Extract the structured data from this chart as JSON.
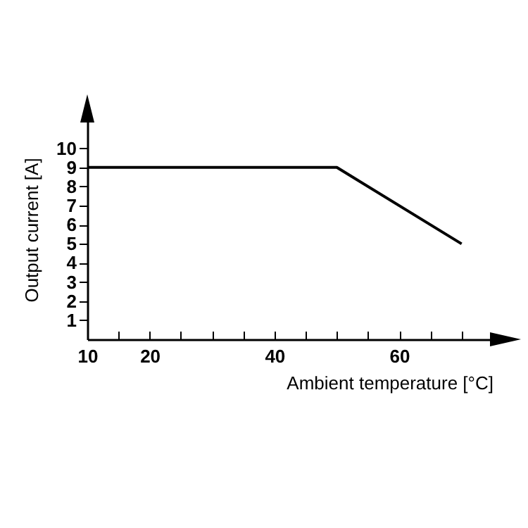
{
  "chart_data": {
    "type": "line",
    "xlabel": "Ambient temperature [°C]",
    "ylabel": "Output current [A]",
    "x": [
      10,
      50,
      70
    ],
    "series": [
      {
        "color": "#000000",
        "values": [
          9,
          9,
          5
        ]
      }
    ],
    "xlim": [
      10,
      75
    ],
    "ylim": [
      0,
      11.5
    ],
    "xticks": [
      10,
      {
        "value": 15,
        "label": null
      },
      20,
      {
        "value": 25,
        "label": null
      },
      {
        "value": 30,
        "label": null
      },
      {
        "value": 35,
        "label": null
      },
      40,
      {
        "value": 45,
        "label": null
      },
      {
        "value": 50,
        "label": null
      },
      {
        "value": 55,
        "label": null
      },
      60,
      {
        "value": 65,
        "label": null
      },
      {
        "value": 70,
        "label": null
      }
    ],
    "yticks": [
      1,
      2,
      3,
      4,
      5,
      6,
      7,
      8,
      9,
      10
    ],
    "grid": false,
    "legend": false,
    "marker": "none",
    "line_style": "solid"
  }
}
